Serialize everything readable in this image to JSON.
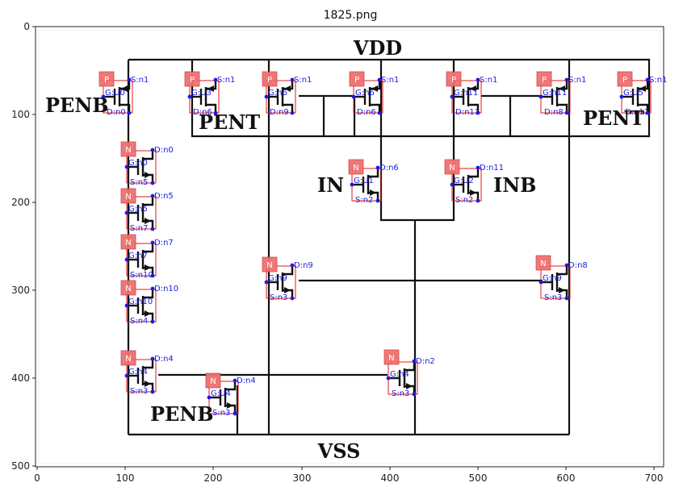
{
  "title": "1825.png",
  "axes": {
    "x_ticks": [
      "0",
      "100",
      "200",
      "300",
      "400",
      "500",
      "600",
      "700"
    ],
    "y_ticks": [
      "0",
      "100",
      "200",
      "300",
      "400",
      "500"
    ]
  },
  "net_labels": {
    "vdd": "VDD",
    "vss": "VSS",
    "penb_top": "PENB",
    "pent_left": "PENT",
    "pent_right": "PENT",
    "in": "IN",
    "inb": "INB",
    "penb_bottom": "PENB"
  },
  "transistors": [
    {
      "id": "U0",
      "type": "P",
      "d": "D:n0",
      "g": "G:U0",
      "s": "S:n1"
    },
    {
      "id": "U3",
      "type": "P",
      "d": "D:n6",
      "g": "G:U3",
      "s": "S:n1"
    },
    {
      "id": "M_n9p",
      "type": "P",
      "d": "D:n9",
      "g": "G:n6",
      "s": "S:n1"
    },
    {
      "id": "M_n6p",
      "type": "P",
      "d": "D:n6",
      "g": "G:n6",
      "s": "S:n1"
    },
    {
      "id": "M_n11p",
      "type": "P",
      "d": "D:n11",
      "g": "G:n11",
      "s": "S:n1"
    },
    {
      "id": "M_n8p",
      "type": "P",
      "d": "D:n8",
      "g": "G:n11",
      "s": "S:n1"
    },
    {
      "id": "U5",
      "type": "P",
      "d": "D:n11",
      "g": "G:U5",
      "s": "S:n1"
    },
    {
      "id": "U1",
      "type": "N",
      "d": "D:n6",
      "g": "G:U1",
      "s": "S:n2"
    },
    {
      "id": "U2",
      "type": "N",
      "d": "D:n11",
      "g": "G:U2",
      "s": "S:n2"
    },
    {
      "id": "M_n0",
      "type": "N",
      "d": "D:n0",
      "g": "G:n0",
      "s": "S:n5"
    },
    {
      "id": "M_n5",
      "type": "N",
      "d": "D:n5",
      "g": "G:n5",
      "s": "S:n7"
    },
    {
      "id": "M_n7",
      "type": "N",
      "d": "D:n7",
      "g": "G:n7",
      "s": "S:n10"
    },
    {
      "id": "M_n10",
      "type": "N",
      "d": "D:n10",
      "g": "G:n10",
      "s": "S:n4"
    },
    {
      "id": "M_n9n",
      "type": "N",
      "d": "D:n9",
      "g": "G:n9",
      "s": "S:n3"
    },
    {
      "id": "M_n8n",
      "type": "N",
      "d": "D:n8",
      "g": "G:n9",
      "s": "S:n3"
    },
    {
      "id": "M_n4a",
      "type": "N",
      "d": "D:n4",
      "g": "G:n4",
      "s": "S:n3"
    },
    {
      "id": "U4",
      "type": "N",
      "d": "D:n4",
      "g": "G:U4",
      "s": "S:n3"
    },
    {
      "id": "M_n2",
      "type": "N",
      "d": "D:n2",
      "g": "G:n4",
      "s": "S:n3"
    }
  ]
}
